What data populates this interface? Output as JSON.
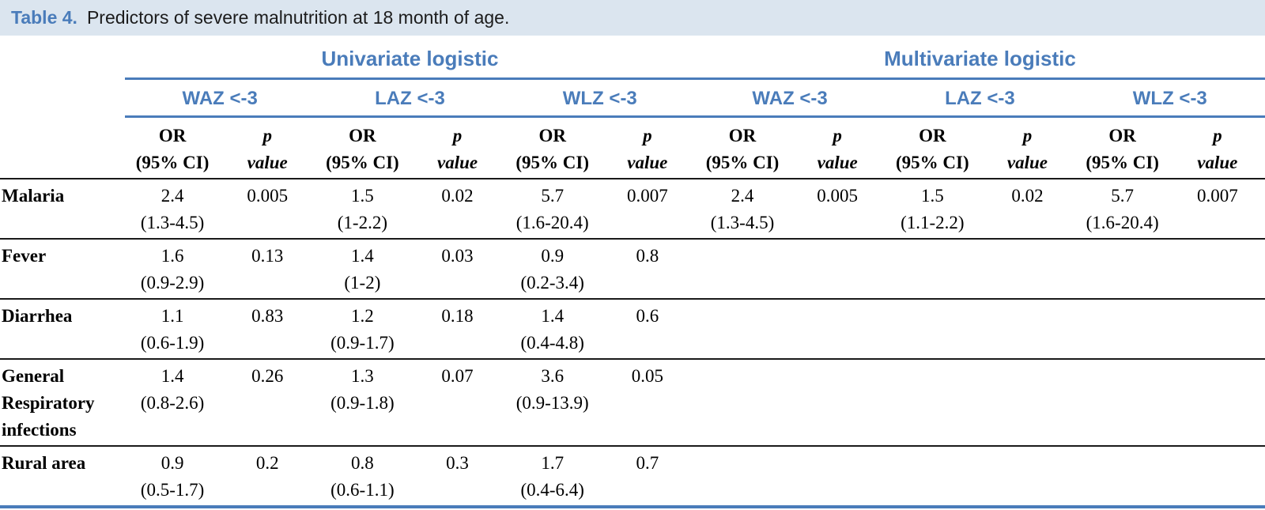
{
  "title": {
    "label": "Table 4.",
    "text": "Predictors of severe malnutrition at 18 month of age."
  },
  "table": {
    "group_headers": [
      "Univariate logistic",
      "Multivariate logistic"
    ],
    "subgroup_headers": [
      "WAZ <-3",
      "LAZ <-3",
      "WLZ <-3",
      "WAZ <-3",
      "LAZ <-3",
      "WLZ <-3"
    ],
    "measure_headers": {
      "or_line1": "OR",
      "or_line2": "(95% CI)",
      "p_line1": "p",
      "p_line2": "value"
    },
    "rows": [
      {
        "label": "Malaria",
        "cells": [
          {
            "or": "2.4",
            "ci": "(1.3-4.5)",
            "p": "0.005"
          },
          {
            "or": "1.5",
            "ci": "(1-2.2)",
            "p": "0.02"
          },
          {
            "or": "5.7",
            "ci": "(1.6-20.4)",
            "p": "0.007"
          },
          {
            "or": "2.4",
            "ci": "(1.3-4.5)",
            "p": "0.005"
          },
          {
            "or": "1.5",
            "ci": "(1.1-2.2)",
            "p": "0.02"
          },
          {
            "or": "5.7",
            "ci": "(1.6-20.4)",
            "p": "0.007"
          }
        ]
      },
      {
        "label": "Fever",
        "cells": [
          {
            "or": "1.6",
            "ci": "(0.9-2.9)",
            "p": "0.13"
          },
          {
            "or": "1.4",
            "ci": "(1-2)",
            "p": "0.03"
          },
          {
            "or": "0.9",
            "ci": "(0.2-3.4)",
            "p": "0.8"
          },
          {
            "or": "",
            "ci": "",
            "p": ""
          },
          {
            "or": "",
            "ci": "",
            "p": ""
          },
          {
            "or": "",
            "ci": "",
            "p": ""
          }
        ]
      },
      {
        "label": "Diarrhea",
        "cells": [
          {
            "or": "1.1",
            "ci": "(0.6-1.9)",
            "p": "0.83"
          },
          {
            "or": "1.2",
            "ci": "(0.9-1.7)",
            "p": "0.18"
          },
          {
            "or": "1.4",
            "ci": "(0.4-4.8)",
            "p": "0.6"
          },
          {
            "or": "",
            "ci": "",
            "p": ""
          },
          {
            "or": "",
            "ci": "",
            "p": ""
          },
          {
            "or": "",
            "ci": "",
            "p": ""
          }
        ]
      },
      {
        "label": "General Respiratory infections",
        "cells": [
          {
            "or": "1.4",
            "ci": "(0.8-2.6)",
            "p": "0.26"
          },
          {
            "or": "1.3",
            "ci": "(0.9-1.8)",
            "p": "0.07"
          },
          {
            "or": "3.6",
            "ci": "(0.9-13.9)",
            "p": "0.05"
          },
          {
            "or": "",
            "ci": "",
            "p": ""
          },
          {
            "or": "",
            "ci": "",
            "p": ""
          },
          {
            "or": "",
            "ci": "",
            "p": ""
          }
        ]
      },
      {
        "label": "Rural area",
        "cells": [
          {
            "or": "0.9",
            "ci": "(0.5-1.7)",
            "p": "0.2"
          },
          {
            "or": "0.8",
            "ci": "(0.6-1.1)",
            "p": "0.3"
          },
          {
            "or": "1.7",
            "ci": "(0.4-6.4)",
            "p": "0.7"
          },
          {
            "or": "",
            "ci": "",
            "p": ""
          },
          {
            "or": "",
            "ci": "",
            "p": ""
          },
          {
            "or": "",
            "ci": "",
            "p": ""
          }
        ]
      }
    ]
  },
  "colors": {
    "accent_blue": "#4a7cba",
    "title_bar_bg": "#dbe5ef",
    "rule_dark": "#1a1a1a"
  }
}
